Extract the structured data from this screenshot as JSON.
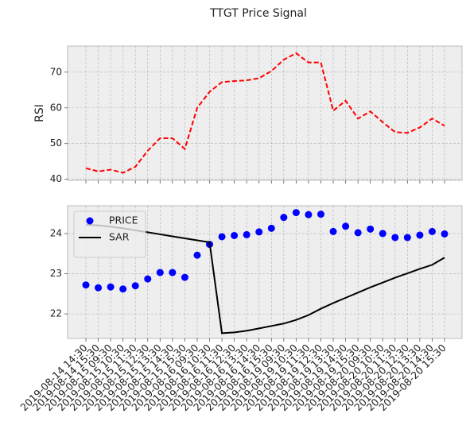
{
  "title": "TTGT Price Signal",
  "chart_data": [
    {
      "type": "line",
      "ylabel": "RSI",
      "values": [
        43.1,
        42.2,
        42.7,
        41.8,
        43.5,
        48,
        51.5,
        51.5,
        48.5,
        60,
        64.5,
        67.2,
        67.5,
        67.7,
        68.3,
        70.3,
        73.5,
        75.3,
        72.7,
        72.7,
        59.2,
        62,
        57,
        59,
        56,
        53.2,
        53,
        54.5,
        57,
        55
      ],
      "color": "#ff0000",
      "line_style": "dashed",
      "ylim": [
        39.7,
        77.3
      ],
      "yticks": [
        40,
        50,
        60,
        70
      ],
      "grid": true
    },
    {
      "type": "line",
      "categories": [
        "2019-08-14 14:30",
        "2019-08-14 15:30",
        "2019-08-15 09:30",
        "2019-08-15 10:30",
        "2019-08-15 11:30",
        "2019-08-15 12:30",
        "2019-08-15 13:30",
        "2019-08-15 14:30",
        "2019-08-15 15:30",
        "2019-08-16 09:30",
        "2019-08-16 10:30",
        "2019-08-16 11:30",
        "2019-08-16 12:30",
        "2019-08-16 13:30",
        "2019-08-16 14:30",
        "2019-08-16 15:30",
        "2019-08-19 09:30",
        "2019-08-19 10:30",
        "2019-08-19 11:30",
        "2019-08-19 12:30",
        "2019-08-19 13:30",
        "2019-08-19 14:30",
        "2019-08-19 15:30",
        "2019-08-20 09:30",
        "2019-08-20 10:30",
        "2019-08-20 11:30",
        "2019-08-20 12:30",
        "2019-08-20 13:30",
        "2019-08-20 14:30",
        "2019-08-20 15:30"
      ],
      "series": [
        {
          "name": "PRICE",
          "color": "#0000ff",
          "style": "markers",
          "values": [
            22.72,
            22.65,
            22.67,
            22.62,
            22.7,
            22.87,
            23.03,
            23.03,
            22.91,
            23.46,
            23.73,
            23.92,
            23.95,
            23.97,
            24.04,
            24.13,
            24.4,
            24.52,
            24.47,
            24.48,
            24.05,
            24.18,
            24.02,
            24.11,
            24.0,
            23.9,
            23.9,
            23.96,
            24.05,
            23.99
          ]
        },
        {
          "name": "SAR",
          "color": "#000000",
          "style": "line",
          "values": [
            24.22,
            24.2,
            24.17,
            24.13,
            24.08,
            24.03,
            23.98,
            23.93,
            23.88,
            23.83,
            23.78,
            21.52,
            21.54,
            21.58,
            21.64,
            21.7,
            21.76,
            21.85,
            21.97,
            22.13,
            22.27,
            22.4,
            22.53,
            22.66,
            22.78,
            22.9,
            23.01,
            23.12,
            23.22,
            23.4
          ]
        }
      ],
      "ylim": [
        21.39,
        24.69
      ],
      "yticks": [
        22,
        23,
        24
      ],
      "grid": true,
      "legend": "upper left"
    }
  ]
}
